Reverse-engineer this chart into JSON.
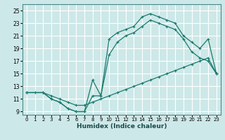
{
  "xlabel": "Humidex (Indice chaleur)",
  "bg_color": "#cde8e8",
  "grid_color": "#ffffff",
  "line_color": "#1a7a6e",
  "xlim": [
    -0.5,
    23.5
  ],
  "ylim": [
    8.5,
    26
  ],
  "xticks": [
    0,
    1,
    2,
    3,
    4,
    5,
    6,
    7,
    8,
    9,
    10,
    11,
    12,
    13,
    14,
    15,
    16,
    17,
    18,
    19,
    20,
    21,
    22,
    23
  ],
  "yticks": [
    9,
    11,
    13,
    15,
    17,
    19,
    21,
    23,
    25
  ],
  "line_bottom_x": [
    0,
    1,
    2,
    3,
    4,
    5,
    6,
    7,
    8,
    9,
    10,
    11,
    12,
    13,
    14,
    15,
    16,
    17,
    18,
    19,
    20,
    21,
    22,
    23
  ],
  "line_bottom_y": [
    12.0,
    12.0,
    12.0,
    11.5,
    11.0,
    10.5,
    10.0,
    10.0,
    10.5,
    11.0,
    11.5,
    12.0,
    12.5,
    13.0,
    13.5,
    14.0,
    14.5,
    15.0,
    15.5,
    16.0,
    16.5,
    17.0,
    17.5,
    15.0
  ],
  "line_mid_x": [
    0,
    2,
    3,
    4,
    5,
    6,
    7,
    8,
    9,
    10,
    11,
    12,
    13,
    14,
    15,
    16,
    17,
    18,
    19,
    20,
    21,
    22,
    23
  ],
  "line_mid_y": [
    12.0,
    12.0,
    11.0,
    10.5,
    9.5,
    9.0,
    9.0,
    14.0,
    11.5,
    18.0,
    20.0,
    21.0,
    21.5,
    22.5,
    23.5,
    23.0,
    22.5,
    22.0,
    20.5,
    18.5,
    17.5,
    17.0,
    15.0
  ],
  "line_top_x": [
    0,
    2,
    3,
    4,
    5,
    6,
    7,
    8,
    9,
    10,
    11,
    12,
    13,
    14,
    15,
    16,
    17,
    18,
    19,
    20,
    21,
    22,
    23
  ],
  "line_top_y": [
    12.0,
    12.0,
    11.0,
    10.5,
    9.5,
    9.0,
    9.0,
    11.5,
    11.5,
    20.5,
    21.5,
    22.0,
    22.5,
    24.0,
    24.5,
    24.0,
    23.5,
    23.0,
    21.0,
    20.0,
    19.0,
    20.5,
    15.0
  ]
}
